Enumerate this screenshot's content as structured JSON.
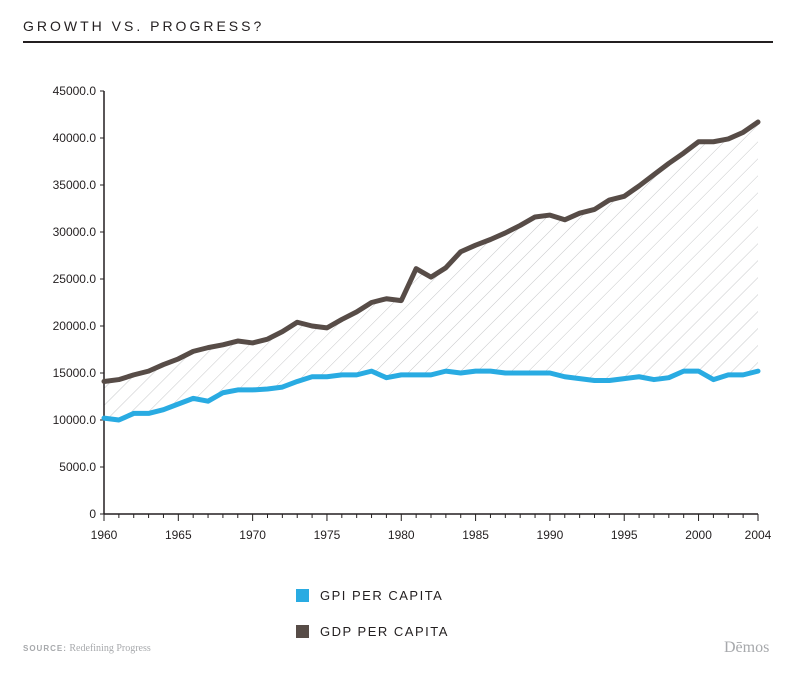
{
  "header": {
    "title": "GROWTH VS. PROGRESS?"
  },
  "chart_data": {
    "type": "line",
    "title": "GROWTH VS. PROGRESS?",
    "xlabel": "",
    "ylabel": "",
    "xlim": [
      1960,
      2004
    ],
    "ylim": [
      0,
      45000
    ],
    "y_ticks": [
      0,
      5000,
      10000,
      15000,
      20000,
      25000,
      30000,
      35000,
      40000,
      45000
    ],
    "y_tick_labels": [
      "0",
      "5000.0",
      "10000.0",
      "15000.0",
      "20000.0",
      "25000.0",
      "30000.0",
      "35000.0",
      "40000.0",
      "45000.0"
    ],
    "x_ticks": [
      1960,
      1965,
      1970,
      1975,
      1980,
      1985,
      1990,
      1995,
      2000,
      2004
    ],
    "x_tick_labels": [
      "1960",
      "1965",
      "1970",
      "1975",
      "1980",
      "1985",
      "1990",
      "1995",
      "2000",
      "2004"
    ],
    "gap_fill": "hatched area between GDP and GPI per capita",
    "x": [
      1960,
      1961,
      1962,
      1963,
      1964,
      1965,
      1966,
      1967,
      1968,
      1969,
      1970,
      1971,
      1972,
      1973,
      1974,
      1975,
      1976,
      1977,
      1978,
      1979,
      1980,
      1981,
      1982,
      1983,
      1984,
      1985,
      1986,
      1987,
      1988,
      1989,
      1990,
      1991,
      1992,
      1993,
      1994,
      1995,
      1996,
      1997,
      1998,
      1999,
      2000,
      2001,
      2002,
      2003,
      2004
    ],
    "series": [
      {
        "name": "GPI PER CAPITA",
        "color": "#29abe2",
        "values": [
          10200,
          10000,
          10700,
          10700,
          11100,
          11700,
          12300,
          12000,
          12900,
          13200,
          13200,
          13300,
          13500,
          14100,
          14600,
          14600,
          14800,
          14800,
          15200,
          14500,
          14800,
          14800,
          14800,
          15200,
          15000,
          15200,
          15200,
          15000,
          15000,
          15000,
          15000,
          14600,
          14400,
          14200,
          14200,
          14400,
          14600,
          14300,
          14500,
          15200,
          15200,
          14300,
          14800,
          14800,
          15200
        ]
      },
      {
        "name": "GDP PER CAPITA",
        "color": "#574c47",
        "values": [
          14100,
          14300,
          14800,
          15200,
          15900,
          16500,
          17300,
          17700,
          18000,
          18400,
          18200,
          18600,
          19400,
          20400,
          20000,
          19800,
          20700,
          21500,
          22500,
          22900,
          22700,
          26100,
          25200,
          26200,
          27900,
          28600,
          29200,
          29900,
          30700,
          31600,
          31800,
          31300,
          32000,
          32400,
          33400,
          33800,
          34900,
          36100,
          37300,
          38400,
          39600,
          39600,
          39900,
          40600,
          41700
        ]
      }
    ]
  },
  "legend": {
    "items": [
      {
        "label": "GPI PER CAPITA",
        "color": "#29abe2"
      },
      {
        "label": "GDP PER CAPITA",
        "color": "#574c47"
      }
    ]
  },
  "footer": {
    "source_key": "SOURCE:",
    "source_text": "Redefining Progress",
    "logo": "Dēmos"
  }
}
